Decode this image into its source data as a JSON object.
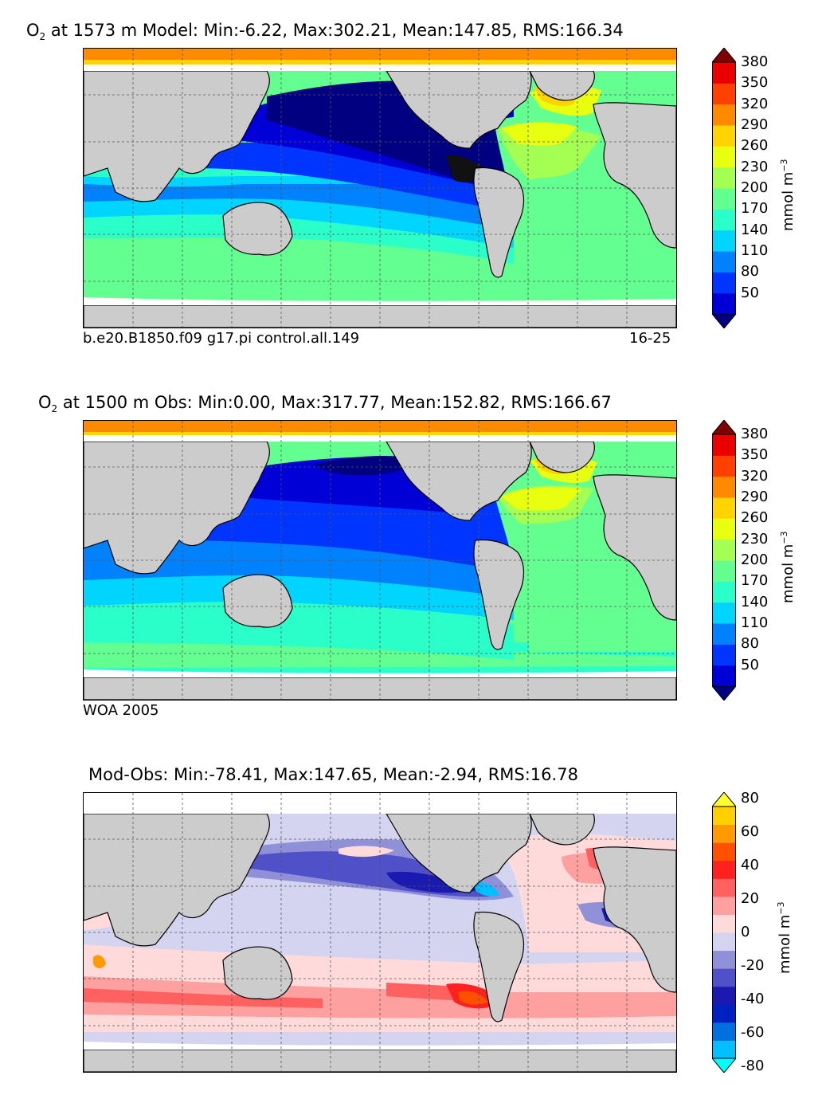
{
  "panels": [
    {
      "title_species": "O",
      "title_sub": "2",
      "title_rest": " at 1573 m Model: Min:-6.22, Max:302.21, Mean:147.85, RMS:166.34",
      "caption_left": "b.e20.B1850.f09 g17.pi control.all.149",
      "caption_right": "16-25",
      "colorbar": {
        "unit": "mmol m",
        "unit_exp": "−3",
        "ticks": [
          "50",
          "80",
          "110",
          "140",
          "170",
          "200",
          "230",
          "260",
          "290",
          "320",
          "350",
          "380"
        ],
        "colors": [
          "#000080",
          "#0000d6",
          "#0035ff",
          "#0082ff",
          "#00d5ff",
          "#2affc9",
          "#63ff91",
          "#a5ff52",
          "#e8ff0f",
          "#ffd400",
          "#ff8a00",
          "#ff4000",
          "#ea0000",
          "#7f0000"
        ]
      }
    },
    {
      "title_species": "O",
      "title_sub": "2",
      "title_rest": " at 1500 m Obs: Min:0.00, Max:317.77, Mean:152.82, RMS:166.67",
      "caption_left": "WOA 2005",
      "caption_right": "",
      "colorbar": {
        "unit": "mmol m",
        "unit_exp": "−3",
        "ticks": [
          "50",
          "80",
          "110",
          "140",
          "170",
          "200",
          "230",
          "260",
          "290",
          "320",
          "350",
          "380"
        ],
        "colors": [
          "#000080",
          "#0000d6",
          "#0035ff",
          "#0082ff",
          "#00d5ff",
          "#2affc9",
          "#63ff91",
          "#a5ff52",
          "#e8ff0f",
          "#ffd400",
          "#ff8a00",
          "#ff4000",
          "#ea0000",
          "#7f0000"
        ]
      }
    },
    {
      "title_species": "",
      "title_sub": "",
      "title_rest": "Mod-Obs: Min:-78.41, Max:147.65, Mean:-2.94, RMS:16.78",
      "caption_left": "",
      "caption_right": "",
      "colorbar": {
        "unit": "mmol m",
        "unit_exp": "−3",
        "ticks": [
          "-80",
          "-60",
          "-40",
          "-20",
          "0",
          "20",
          "40",
          "60",
          "80"
        ],
        "colors": [
          "#00ffff",
          "#00c0ff",
          "#0070e0",
          "#0020c0",
          "#1a1ab0",
          "#5050c8",
          "#9090d8",
          "#d4d4f0",
          "#ffdada",
          "#ffa0a0",
          "#ff6060",
          "#ff2020",
          "#ff5000",
          "#ff9a00",
          "#ffcf00",
          "#ffff30"
        ]
      }
    }
  ],
  "palette": {
    "land": "#cccccc",
    "missing": "#ffffff",
    "coast": "#000000",
    "grid": "#555555"
  }
}
